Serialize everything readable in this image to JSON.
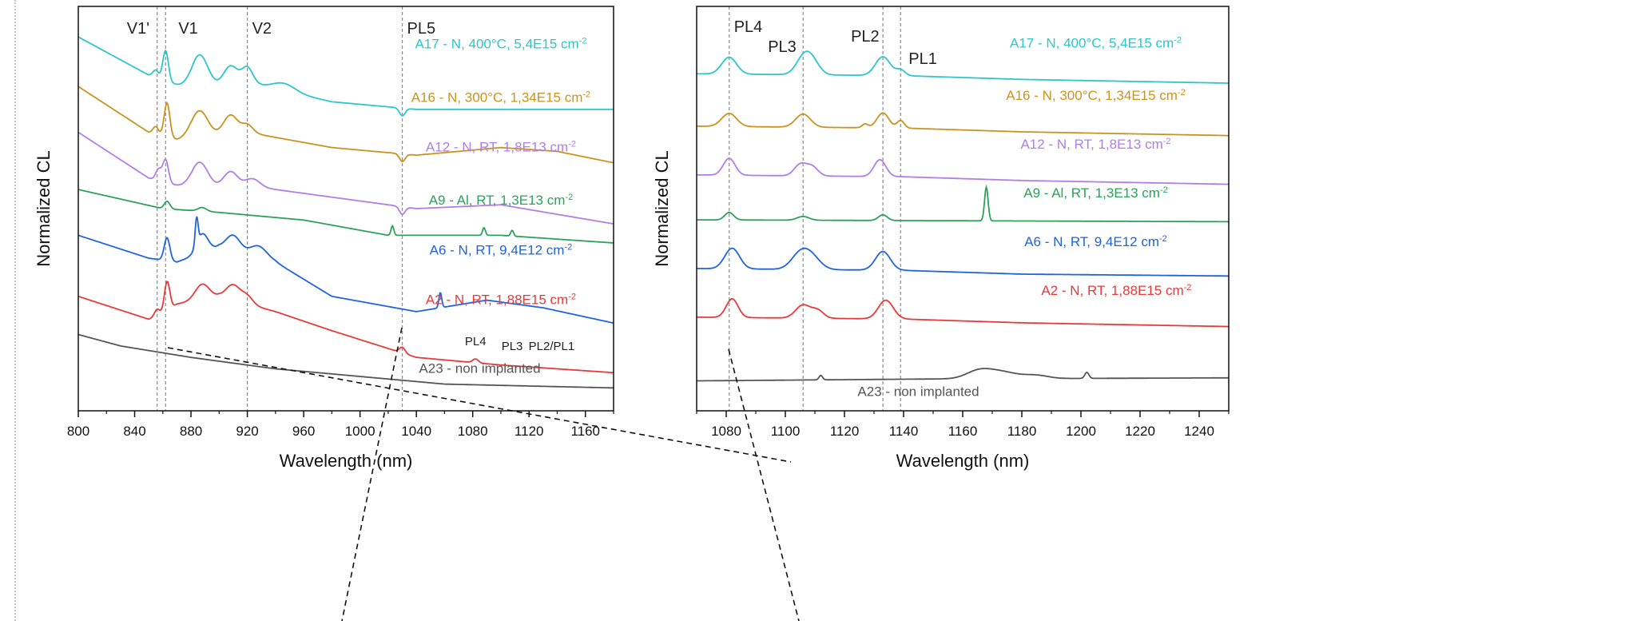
{
  "chart_data": [
    {
      "type": "line",
      "xlabel": "Wavelength (nm)",
      "ylabel": "Normalized CL",
      "xlim": [
        800,
        1180
      ],
      "x_ticks": [
        "800",
        "840",
        "880",
        "920",
        "960",
        "1000",
        "1040",
        "1080",
        "1120",
        "1160"
      ],
      "grid": false,
      "reference_lines": [
        {
          "label": "V1'",
          "x": 856
        },
        {
          "label": "V1",
          "x": 862
        },
        {
          "label": "V2",
          "x": 920
        },
        {
          "label": "PL5",
          "x": 1030
        }
      ],
      "peak_labels": [
        {
          "label": "PL4",
          "x": 1082
        },
        {
          "label": "PL3",
          "x": 1108
        },
        {
          "label": "PL2/PL1",
          "x": 1136
        }
      ],
      "series": [
        {
          "name": "A17 - N, 400°C, 5,4E15 cm⁻²",
          "color": "#2cc6cc",
          "offset": 0.76,
          "bg": [
            [
              800,
              0.16
            ],
            [
              850,
              0.06
            ],
            [
              880,
              0.02
            ],
            [
              920,
              0.04
            ],
            [
              980,
              -0.01
            ],
            [
              1040,
              -0.03
            ],
            [
              1100,
              -0.03
            ],
            [
              1180,
              -0.03
            ]
          ],
          "peaks": [
            [
              855,
              0.02,
              2
            ],
            [
              862,
              0.08,
              2
            ],
            [
              886,
              0.09,
              6
            ],
            [
              908,
              0.05,
              5
            ],
            [
              920,
              0.04,
              4
            ],
            [
              946,
              0.02,
              8
            ],
            [
              1030,
              -0.02,
              2
            ]
          ]
        },
        {
          "name": "A16 - N, 300°C, 1,34E15 cm⁻²",
          "color": "#c9931f",
          "offset": 0.63,
          "bg": [
            [
              800,
              0.16
            ],
            [
              850,
              0.04
            ],
            [
              870,
              0.02
            ],
            [
              920,
              0.04
            ],
            [
              980,
              0.0
            ],
            [
              1040,
              -0.02
            ],
            [
              1100,
              0.0
            ],
            [
              1140,
              -0.01
            ],
            [
              1180,
              -0.04
            ]
          ],
          "peaks": [
            [
              855,
              0.02,
              2
            ],
            [
              863,
              0.09,
              2
            ],
            [
              886,
              0.07,
              6
            ],
            [
              908,
              0.05,
              5
            ],
            [
              920,
              0.02,
              4
            ],
            [
              1030,
              -0.02,
              2
            ]
          ]
        },
        {
          "name": "A12 - N, RT, 1,8E13 cm⁻²",
          "color": "#b07ee6",
          "offset": 0.5,
          "bg": [
            [
              800,
              0.17
            ],
            [
              850,
              0.05
            ],
            [
              880,
              0.02
            ],
            [
              920,
              0.03
            ],
            [
              980,
              0.0
            ],
            [
              1040,
              -0.03
            ],
            [
              1100,
              -0.02
            ],
            [
              1180,
              -0.07
            ]
          ],
          "peaks": [
            [
              857,
              0.03,
              2
            ],
            [
              862,
              0.06,
              2
            ],
            [
              886,
              0.07,
              6
            ],
            [
              908,
              0.04,
              5
            ],
            [
              924,
              0.02,
              5
            ],
            [
              1030,
              -0.02,
              2
            ]
          ]
        },
        {
          "name": "A9 - Al, RT, 1,3E13 cm⁻²",
          "color": "#2da15a",
          "offset": 0.42,
          "bg": [
            [
              800,
              0.1
            ],
            [
              860,
              0.05
            ],
            [
              900,
              0.04
            ],
            [
              960,
              0.02
            ],
            [
              1020,
              -0.02
            ],
            [
              1100,
              -0.02
            ],
            [
              1180,
              -0.04
            ]
          ],
          "peaks": [
            [
              863,
              0.02,
              2
            ],
            [
              888,
              0.01,
              3
            ],
            [
              1023,
              0.025,
              1
            ],
            [
              1088,
              0.02,
              1
            ],
            [
              1108,
              0.015,
              1
            ]
          ]
        },
        {
          "name": "A6 - N, RT, 9,4E12 cm⁻²",
          "color": "#1e64e0",
          "offset": 0.24,
          "bg": [
            [
              800,
              0.16
            ],
            [
              850,
              0.1
            ],
            [
              870,
              0.09
            ],
            [
              900,
              0.13
            ],
            [
              940,
              0.09
            ],
            [
              980,
              0.0
            ],
            [
              1040,
              -0.04
            ],
            [
              1090,
              -0.01
            ],
            [
              1130,
              -0.03
            ],
            [
              1180,
              -0.07
            ]
          ],
          "peaks": [
            [
              863,
              0.06,
              2
            ],
            [
              884,
              0.07,
              1
            ],
            [
              888,
              0.05,
              4
            ],
            [
              910,
              0.04,
              5
            ],
            [
              928,
              0.03,
              6
            ],
            [
              1057,
              0.04,
              1
            ]
          ]
        },
        {
          "name": "A2 - N, RT, 1,88E15 cm⁻²",
          "color": "#e63a3a",
          "offset": 0.1,
          "bg": [
            [
              800,
              0.14
            ],
            [
              850,
              0.08
            ],
            [
              860,
              0.09
            ],
            [
              870,
              0.12
            ],
            [
              900,
              0.14
            ],
            [
              940,
              0.1
            ],
            [
              980,
              0.05
            ],
            [
              1040,
              -0.02
            ],
            [
              1100,
              -0.04
            ],
            [
              1180,
              -0.06
            ]
          ],
          "peaks": [
            [
              856,
              0.02,
              2
            ],
            [
              863,
              0.08,
              2
            ],
            [
              888,
              0.04,
              5
            ],
            [
              910,
              0.04,
              5
            ],
            [
              920,
              0.02,
              4
            ],
            [
              1030,
              0.015,
              2
            ],
            [
              1082,
              0.01,
              2
            ]
          ]
        },
        {
          "name": "A23 - non implanted",
          "color": "#555555",
          "offset": 0.0,
          "bg": [
            [
              800,
              0.14
            ],
            [
              830,
              0.11
            ],
            [
              880,
              0.08
            ],
            [
              940,
              0.05
            ],
            [
              1000,
              0.03
            ],
            [
              1060,
              0.01
            ],
            [
              1180,
              0.0
            ]
          ],
          "peaks": []
        }
      ],
      "label_positions": [
        [
          1100,
          0.89
        ],
        [
          1100,
          0.75
        ],
        [
          1100,
          0.62
        ],
        [
          1100,
          0.48
        ],
        [
          1100,
          0.35
        ],
        [
          1100,
          0.22
        ],
        [
          1085,
          0.04
        ]
      ]
    },
    {
      "type": "line",
      "xlabel": "Wavelength (nm)",
      "ylabel": "Normalized CL",
      "xlim": [
        1070,
        1250
      ],
      "x_ticks": [
        "1080",
        "1100",
        "1120",
        "1140",
        "1160",
        "1180",
        "1200",
        "1220",
        "1240"
      ],
      "grid": false,
      "reference_lines": [
        {
          "label": "PL4",
          "x": 1081
        },
        {
          "label": "PL3",
          "x": 1106
        },
        {
          "label": "PL2",
          "x": 1133
        },
        {
          "label": "PL1",
          "x": 1139
        }
      ],
      "series": [
        {
          "name": "A17 - N, 400°C, 5,4E15 cm⁻²",
          "color": "#2cc6cc",
          "offset": 0.82,
          "bg": [
            [
              1070,
              0.0
            ],
            [
              1140,
              -0.005
            ],
            [
              1180,
              -0.015
            ],
            [
              1250,
              -0.025
            ]
          ],
          "peaks": [
            [
              1081,
              0.045,
              2.5
            ],
            [
              1106,
              0.04,
              2.5
            ],
            [
              1109,
              0.035,
              2.5
            ],
            [
              1133,
              0.05,
              2.5
            ],
            [
              1139,
              0.015,
              1.5
            ]
          ]
        },
        {
          "name": "A16 - N, 300°C, 1,34E15 cm⁻²",
          "color": "#c9931f",
          "offset": 0.68,
          "bg": [
            [
              1070,
              0.0
            ],
            [
              1140,
              -0.005
            ],
            [
              1180,
              -0.015
            ],
            [
              1250,
              -0.025
            ]
          ],
          "peaks": [
            [
              1081,
              0.035,
              2.5
            ],
            [
              1106,
              0.035,
              2.5
            ],
            [
              1127,
              0.01,
              1
            ],
            [
              1133,
              0.04,
              2
            ],
            [
              1139,
              0.02,
              1.2
            ]
          ]
        },
        {
          "name": "A12 - N, RT, 1,8E13 cm⁻²",
          "color": "#b07ee6",
          "offset": 0.55,
          "bg": [
            [
              1070,
              0.0
            ],
            [
              1140,
              -0.005
            ],
            [
              1180,
              -0.015
            ],
            [
              1250,
              -0.025
            ]
          ],
          "peaks": [
            [
              1081,
              0.045,
              2
            ],
            [
              1105,
              0.03,
              2
            ],
            [
              1109,
              0.025,
              2
            ],
            [
              1132,
              0.045,
              2
            ]
          ]
        },
        {
          "name": "A9 - Al, RT, 1,3E13 cm⁻²",
          "color": "#2da15a",
          "offset": 0.43,
          "bg": [
            [
              1070,
              0.0
            ],
            [
              1250,
              -0.005
            ]
          ],
          "peaks": [
            [
              1081,
              0.02,
              1.5
            ],
            [
              1106,
              0.01,
              2
            ],
            [
              1133,
              0.015,
              1.5
            ],
            [
              1168,
              0.09,
              0.6
            ]
          ]
        },
        {
          "name": "A6 - N, RT, 9,4E12 cm⁻²",
          "color": "#1e64e0",
          "offset": 0.3,
          "bg": [
            [
              1070,
              0.0
            ],
            [
              1140,
              -0.005
            ],
            [
              1180,
              -0.015
            ],
            [
              1250,
              -0.02
            ]
          ],
          "peaks": [
            [
              1082,
              0.055,
              2.5
            ],
            [
              1105,
              0.04,
              3
            ],
            [
              1109,
              0.03,
              3
            ],
            [
              1133,
              0.05,
              2.5
            ]
          ]
        },
        {
          "name": "A2 - N, RT, 1,88E15 cm⁻²",
          "color": "#e63a3a",
          "offset": 0.17,
          "bg": [
            [
              1070,
              0.0
            ],
            [
              1140,
              -0.005
            ],
            [
              1180,
              -0.015
            ],
            [
              1250,
              -0.025
            ]
          ],
          "peaks": [
            [
              1082,
              0.05,
              2
            ],
            [
              1106,
              0.035,
              2.5
            ],
            [
              1111,
              0.02,
              2
            ],
            [
              1134,
              0.05,
              2.5
            ]
          ]
        },
        {
          "name": "A23 - non implanted",
          "color": "#555555",
          "offset": 0.0,
          "bg": [
            [
              1070,
              0.0
            ],
            [
              1150,
              0.005
            ],
            [
              1250,
              0.008
            ]
          ],
          "peaks": [
            [
              1112,
              0.012,
              0.6
            ],
            [
              1165,
              0.015,
              4
            ],
            [
              1172,
              0.02,
              6
            ],
            [
              1185,
              0.008,
              4
            ],
            [
              1202,
              0.016,
              0.7
            ]
          ]
        }
      ],
      "label_positions": [
        [
          1205,
          0.89
        ],
        [
          1205,
          0.75
        ],
        [
          1205,
          0.62
        ],
        [
          1205,
          0.49
        ],
        [
          1205,
          0.36
        ],
        [
          1212,
          0.23
        ],
        [
          1145,
          -0.04
        ]
      ]
    }
  ]
}
